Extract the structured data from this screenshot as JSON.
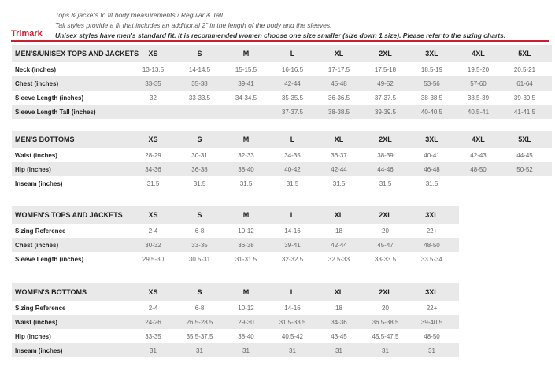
{
  "header": {
    "brand": "Trimark",
    "notes": [
      "Tops & jackets to fit body measurements / Regular & Tall",
      "Tall styles provide a fit that includes an additional 2\" in the length of the body and the sleeves.",
      "Unisex styles have men's standard fit. It is recommended women choose one size smaller (size down 1 size).  Please refer to the sizing charts."
    ]
  },
  "tables": [
    {
      "title": "MEN'S/UNISEX TOPS AND JACKETS",
      "sizes": [
        "XS",
        "S",
        "M",
        "L",
        "XL",
        "2XL",
        "3XL",
        "4XL",
        "5XL"
      ],
      "rows": [
        {
          "label": "Neck (inches)",
          "values": [
            "13-13.5",
            "14-14.5",
            "15-15.5",
            "16-16.5",
            "17-17.5",
            "17.5-18",
            "18.5-19",
            "19.5-20",
            "20.5-21"
          ]
        },
        {
          "label": "Chest (inches)",
          "values": [
            "33-35",
            "35-38",
            "39-41",
            "42-44",
            "45-48",
            "49-52",
            "53-56",
            "57-60",
            "61-64"
          ]
        },
        {
          "label": "Sleeve Length (inches)",
          "values": [
            "32",
            "33-33.5",
            "34-34.5",
            "35-35.5",
            "36-36.5",
            "37-37.5",
            "38-38.5",
            "38.5-39",
            "39-39.5"
          ]
        },
        {
          "label": "Sleeve Length Tall (inches)",
          "values": [
            null,
            null,
            null,
            "37-37.5",
            "38-38.5",
            "39-39.5",
            "40-40.5",
            "40.5-41",
            "41-41.5"
          ]
        }
      ]
    },
    {
      "title": "MEN'S BOTTOMS",
      "sizes": [
        "XS",
        "S",
        "M",
        "L",
        "XL",
        "2XL",
        "3XL",
        "4XL",
        "5XL"
      ],
      "rows": [
        {
          "label": "Waist (inches)",
          "values": [
            "28-29",
            "30-31",
            "32-33",
            "34-35",
            "36-37",
            "38-39",
            "40-41",
            "42-43",
            "44-45"
          ]
        },
        {
          "label": "Hip (inches)",
          "values": [
            "34-36",
            "36-38",
            "38-40",
            "40-42",
            "42-44",
            "44-46",
            "46-48",
            "48-50",
            "50-52"
          ]
        },
        {
          "label": "Inseam (inches)",
          "values": [
            "31.5",
            "31.5",
            "31.5",
            "31.5",
            "31.5",
            "31.5",
            "31.5",
            null,
            null
          ]
        }
      ]
    },
    {
      "title": "WOMEN'S TOPS AND JACKETS",
      "sizes": [
        "XS",
        "S",
        "M",
        "L",
        "XL",
        "2XL",
        "3XL"
      ],
      "rows": [
        {
          "label": "Sizing Reference",
          "values": [
            "2-4",
            "6-8",
            "10-12",
            "14-16",
            "18",
            "20",
            "22+"
          ]
        },
        {
          "label": "Chest (inches)",
          "values": [
            "30-32",
            "33-35",
            "36-38",
            "39-41",
            "42-44",
            "45-47",
            "48-50"
          ]
        },
        {
          "label": "Sleeve Length (inches)",
          "values": [
            "29.5-30",
            "30.5-31",
            "31-31.5",
            "32-32.5",
            "32.5-33",
            "33-33.5",
            "33.5-34"
          ]
        }
      ]
    },
    {
      "title": "WOMEN'S BOTTOMS",
      "sizes": [
        "XS",
        "S",
        "M",
        "L",
        "XL",
        "2XL",
        "3XL"
      ],
      "rows": [
        {
          "label": "Sizing Reference",
          "values": [
            "2-4",
            "6-8",
            "10-12",
            "14-16",
            "18",
            "20",
            "22+"
          ]
        },
        {
          "label": "Waist (inches)",
          "values": [
            "24-26",
            "26.5-28.5",
            "29-30",
            "31.5-33.5",
            "34-36",
            "36.5-38.5",
            "39-40.5"
          ]
        },
        {
          "label": "Hip (inches)",
          "values": [
            "33-35",
            "35.5-37.5",
            "38-40",
            "40.5-42",
            "43-45",
            "45.5-47.5",
            "48-50"
          ]
        },
        {
          "label": "Inseam (inches)",
          "values": [
            "31",
            "31",
            "31",
            "31",
            "31",
            "31",
            "31"
          ]
        }
      ]
    }
  ]
}
